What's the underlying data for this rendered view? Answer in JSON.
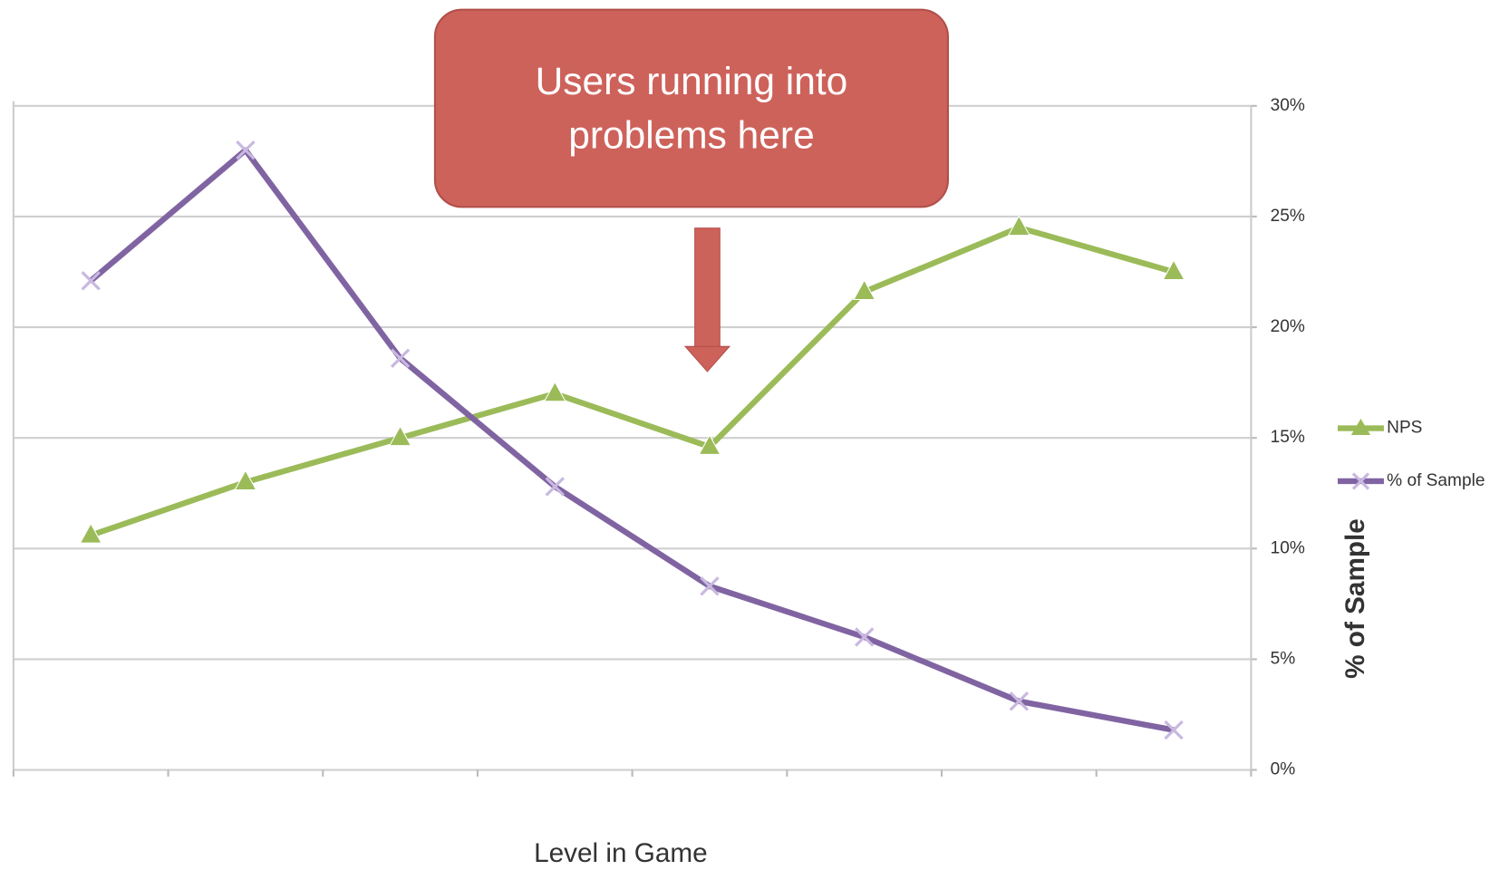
{
  "chart_data": {
    "type": "line",
    "annotation": "Users running into problems here",
    "xlabel": "Level in Game",
    "y2label": "% of Sample",
    "categories": [
      null,
      null,
      null,
      null,
      null,
      null,
      null,
      null
    ],
    "y2lim": [
      0,
      30
    ],
    "y2ticks": [
      {
        "value": 0,
        "label": "0%"
      },
      {
        "value": 5,
        "label": "5%"
      },
      {
        "value": 10,
        "label": "10%"
      },
      {
        "value": 15,
        "label": "15%"
      },
      {
        "value": 20,
        "label": "20%"
      },
      {
        "value": 25,
        "label": "25%"
      },
      {
        "value": 30,
        "label": "30%"
      }
    ],
    "grid": true,
    "legend": "right",
    "series": [
      {
        "name": "NPS",
        "color": "#9bbb59",
        "marker": "triangle",
        "axis": "y2",
        "values": [
          10.6,
          13.0,
          15.0,
          17.0,
          14.6,
          21.6,
          24.5,
          22.5
        ]
      },
      {
        "name": "% of Sample",
        "color": "#8064a2",
        "marker": "x",
        "axis": "y2",
        "values": [
          22.1,
          28.0,
          18.6,
          12.8,
          8.3,
          6.0,
          3.1,
          1.8
        ]
      }
    ]
  }
}
